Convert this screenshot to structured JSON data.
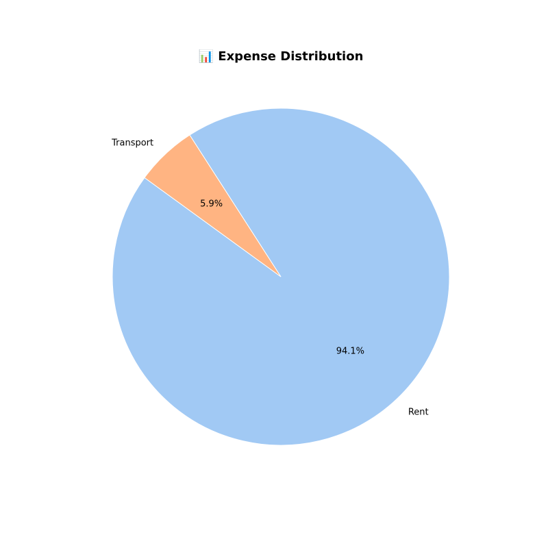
{
  "chart_data": {
    "type": "pie",
    "title": "📊 Expense Distribution",
    "title_icon": "bar-chart-icon",
    "slices": [
      {
        "name": "Rent",
        "value": 94.1,
        "pct_label": "94.1%",
        "color": "#a1c9f4"
      },
      {
        "name": "Transport",
        "value": 5.9,
        "pct_label": "5.9%",
        "color": "#ffb482"
      }
    ],
    "start_angle_deg": 144,
    "direction": "counterclockwise",
    "legend": "none"
  }
}
